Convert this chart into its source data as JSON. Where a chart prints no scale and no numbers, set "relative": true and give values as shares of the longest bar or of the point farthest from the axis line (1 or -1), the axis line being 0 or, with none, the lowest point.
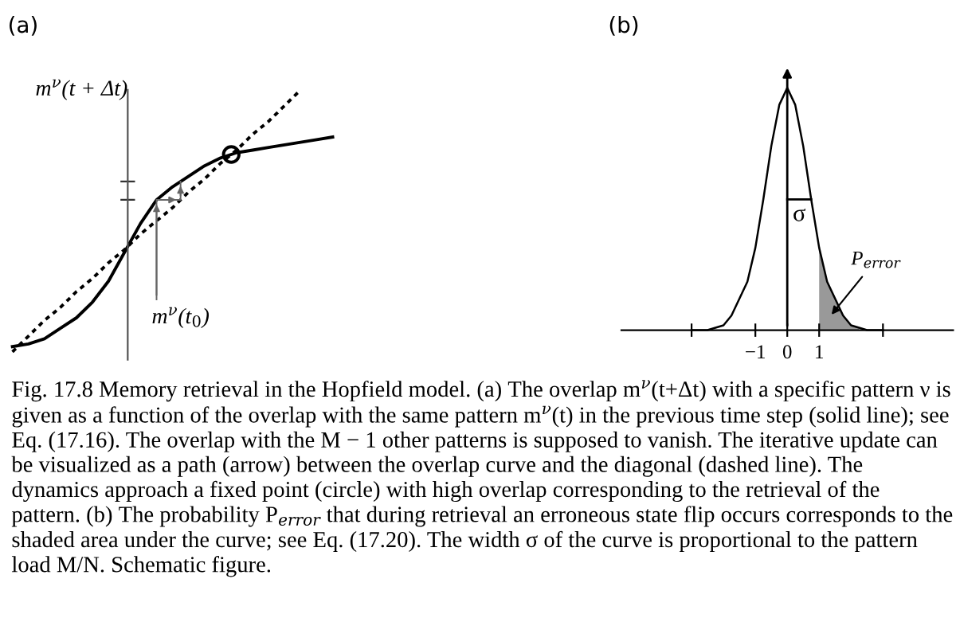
{
  "chart_data": [
    {
      "type": "line",
      "title": "(a)",
      "ylabel": "m$^{ν}$(t + Δt)",
      "relative": true,
      "grid": false,
      "categories": [
        null,
        null,
        null,
        null,
        null,
        null,
        null,
        null,
        null,
        null,
        null,
        null,
        null,
        null,
        null,
        null,
        null,
        null,
        null,
        null,
        null
      ],
      "series": [
        {
          "color": "#000000",
          "line_style": "solid",
          "values": [
            0.02,
            0.03,
            0.05,
            0.09,
            0.13,
            0.19,
            0.27,
            0.38,
            0.49,
            0.58,
            0.63,
            0.67,
            0.71,
            0.74,
            0.76,
            0.77,
            0.78,
            0.79,
            0.8,
            0.81,
            0.82
          ]
        },
        {
          "color": "#000000",
          "line_style": "dotted",
          "values": [
            0,
            0.06,
            0.12,
            0.17,
            0.23,
            0.28,
            0.34,
            0.39,
            0.45,
            0.5,
            0.55,
            0.61,
            0.66,
            0.72,
            0.77,
            0.83,
            0.88,
            0.94,
            1,
            null,
            null
          ]
        }
      ],
      "annotations": [
        "m$^{ν}$(t$_{0}$)"
      ]
    },
    {
      "type": "line",
      "title": "(b)",
      "relative": true,
      "grid": false,
      "tick_labels": "x",
      "xlim": [
        -5.2,
        5.2
      ],
      "xticks": [
        {
          "value": -3,
          "label": null
        },
        -1,
        0,
        1,
        {
          "value": 3,
          "label": null
        }
      ],
      "series": [
        {
          "color": "#000000",
          "line_style": "solid",
          "x": [
            -3,
            -2.5,
            -2.25,
            -2,
            -1.75,
            -1.5,
            -1.25,
            -1,
            -0.75,
            -0.5,
            -0.25,
            0,
            0.25,
            0.5,
            0.75,
            1,
            1.25,
            1.5,
            1.75,
            2,
            2.25,
            2.5,
            3
          ],
          "values": [
            0,
            0,
            0.01,
            0.02,
            0.06,
            0.13,
            0.2,
            0.34,
            0.54,
            0.76,
            0.93,
            1,
            0.93,
            0.76,
            0.54,
            0.34,
            0.2,
            0.13,
            0.06,
            0.02,
            0.01,
            0,
            0
          ]
        },
        {
          "type": "area",
          "color": "#999999",
          "x": [
            1,
            1.25,
            1.5,
            1.75,
            2,
            2.25
          ],
          "values": [
            0.34,
            0.2,
            0.13,
            0.06,
            0.02,
            0.01
          ]
        }
      ],
      "annotations": [
        "σ",
        "P$_{error}$",
        "Fig. 17.8 Memory retrieval in the Hopfield model. (a) The overlap m$^{ν}$(t+Δt) with a specific pattern ν is given as a function of the overlap with the same pattern m$^{ν}$(t) in the previous time step (solid line); see Eq. (17.16). The overlap with the M − 1 other patterns is supposed to vanish. The iterative update can be visualized as a path (arrow) between the overlap curve and the diagonal (dashed line). The dynamics approach a fixed point (circle) with high overlap corresponding to the retrieval of the pattern. (b) The probability P$_{error}$ that during retrieval an erroneous state flip occurs corresponds to the shaded area under the curve; see Eq. (17.20). The width σ of the curve is proportional to the pattern load M/N. Schematic figure."
      ]
    }
  ]
}
